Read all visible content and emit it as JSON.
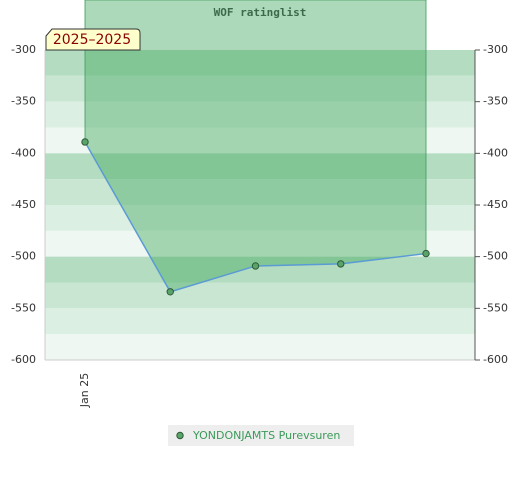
{
  "chart_data": {
    "type": "line",
    "title": "WOF ratinglist",
    "badge": "2025–2025",
    "categories": [
      "Jan 25",
      null,
      null,
      null,
      null
    ],
    "series": [
      {
        "name": "YONDONJAMTS Purevsuren",
        "color": "#5b9bd5",
        "marker_color": "#5aa469",
        "values": [
          -389,
          -534,
          -509,
          -507,
          -497
        ]
      }
    ],
    "ylim": [
      -600,
      -300
    ],
    "yticks": [
      -300,
      -350,
      -400,
      -450,
      -500,
      -550,
      -600
    ]
  }
}
